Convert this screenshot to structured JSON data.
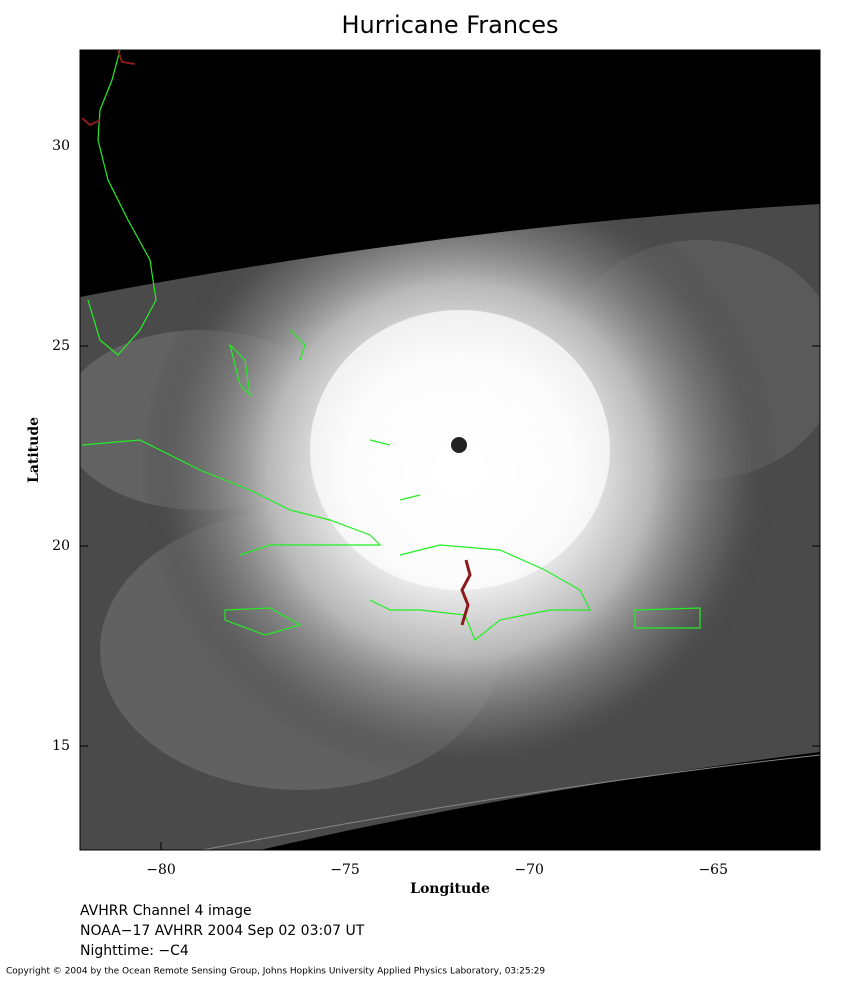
{
  "chart_data": {
    "type": "map",
    "title": "Hurricane Frances",
    "xlabel": "Longitude",
    "ylabel": "Latitude",
    "xlim": [
      -82.2,
      -62.1
    ],
    "ylim": [
      12.4,
      32.4
    ],
    "xticks": [
      {
        "value": -80,
        "label": "−80"
      },
      {
        "value": -75,
        "label": "−75"
      },
      {
        "value": -70,
        "label": "−70"
      },
      {
        "value": -65,
        "label": "−65"
      }
    ],
    "yticks": [
      15,
      20,
      25,
      30
    ],
    "notes": [
      "AVHRR Channel 4 image",
      "NOAA−17 AVHRR 2004 Sep 02 03:07 UT",
      "Nighttime: −C4"
    ],
    "copyright": "Copyright © 2004 by the Ocean Remote Sensing Group, Johns Hopkins University Applied Physics Laboratory, 03:25:29"
  }
}
